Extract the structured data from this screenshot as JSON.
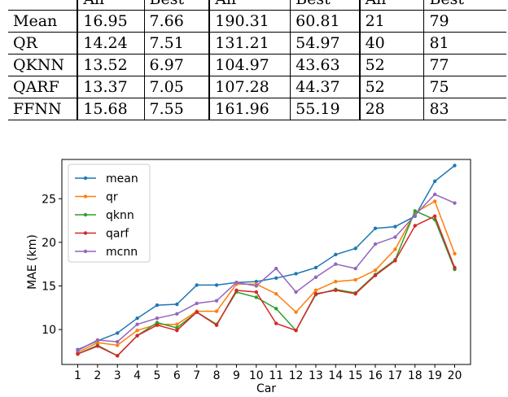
{
  "table": {
    "header": [
      "All",
      "Best",
      "All",
      "Best",
      "All",
      "Best"
    ],
    "rows": [
      {
        "label": "Mean",
        "cells": [
          "16.95",
          "7.66",
          "190.31",
          "60.81",
          "21",
          "79"
        ]
      },
      {
        "label": "QR",
        "cells": [
          "14.24",
          "7.51",
          "131.21",
          "54.97",
          "40",
          "81"
        ]
      },
      {
        "label": "QKNN",
        "cells": [
          "13.52",
          "6.97",
          "104.97",
          "43.63",
          "52",
          "77"
        ]
      },
      {
        "label": "QARF",
        "cells": [
          "13.37",
          "7.05",
          "107.28",
          "44.37",
          "52",
          "75"
        ]
      },
      {
        "label": "FFNN",
        "cells": [
          "15.68",
          "7.55",
          "161.96",
          "55.19",
          "28",
          "83"
        ]
      }
    ]
  },
  "chart_data": {
    "type": "line",
    "x": [
      1,
      2,
      3,
      4,
      5,
      6,
      7,
      8,
      9,
      10,
      11,
      12,
      13,
      14,
      15,
      16,
      17,
      18,
      19,
      20
    ],
    "xlabel": "Car",
    "ylabel": "MAE (km)",
    "xlim": [
      0.2,
      20.8
    ],
    "ylim": [
      6.0,
      29.5
    ],
    "yticks": [
      10,
      15,
      20,
      25
    ],
    "grid": false,
    "legend_position": "top-left",
    "series": [
      {
        "name": "mean",
        "color": "#1f77b4",
        "values": [
          7.7,
          8.7,
          9.6,
          11.3,
          12.8,
          12.9,
          15.1,
          15.1,
          15.4,
          15.5,
          15.9,
          16.4,
          17.1,
          18.6,
          19.3,
          21.6,
          21.8,
          23.0,
          27.0,
          28.8
        ]
      },
      {
        "name": "qr",
        "color": "#ff7f0e",
        "values": [
          7.4,
          8.5,
          8.2,
          9.9,
          10.6,
          10.6,
          12.1,
          12.1,
          15.2,
          15.2,
          14.1,
          12.0,
          14.5,
          15.5,
          15.7,
          16.8,
          19.2,
          23.4,
          24.7,
          18.7
        ]
      },
      {
        "name": "qknn",
        "color": "#2ca02c",
        "values": [
          7.2,
          8.2,
          7.0,
          9.3,
          10.8,
          10.2,
          12.0,
          10.6,
          14.3,
          13.7,
          12.4,
          9.9,
          14.0,
          14.6,
          14.2,
          16.3,
          18.0,
          23.6,
          22.6,
          16.9
        ]
      },
      {
        "name": "qarf",
        "color": "#d62728",
        "values": [
          7.2,
          8.1,
          7.0,
          9.3,
          10.5,
          9.9,
          12.0,
          10.5,
          14.5,
          14.3,
          10.7,
          9.9,
          14.1,
          14.5,
          14.1,
          16.2,
          17.9,
          21.9,
          23.0,
          17.1
        ]
      },
      {
        "name": "mcnn",
        "color": "#9467bd",
        "values": [
          7.6,
          8.8,
          8.6,
          10.6,
          11.3,
          11.8,
          13.0,
          13.3,
          15.4,
          15.0,
          17.0,
          14.3,
          16.0,
          17.5,
          17.0,
          19.8,
          20.6,
          23.1,
          25.5,
          24.5
        ]
      }
    ]
  }
}
